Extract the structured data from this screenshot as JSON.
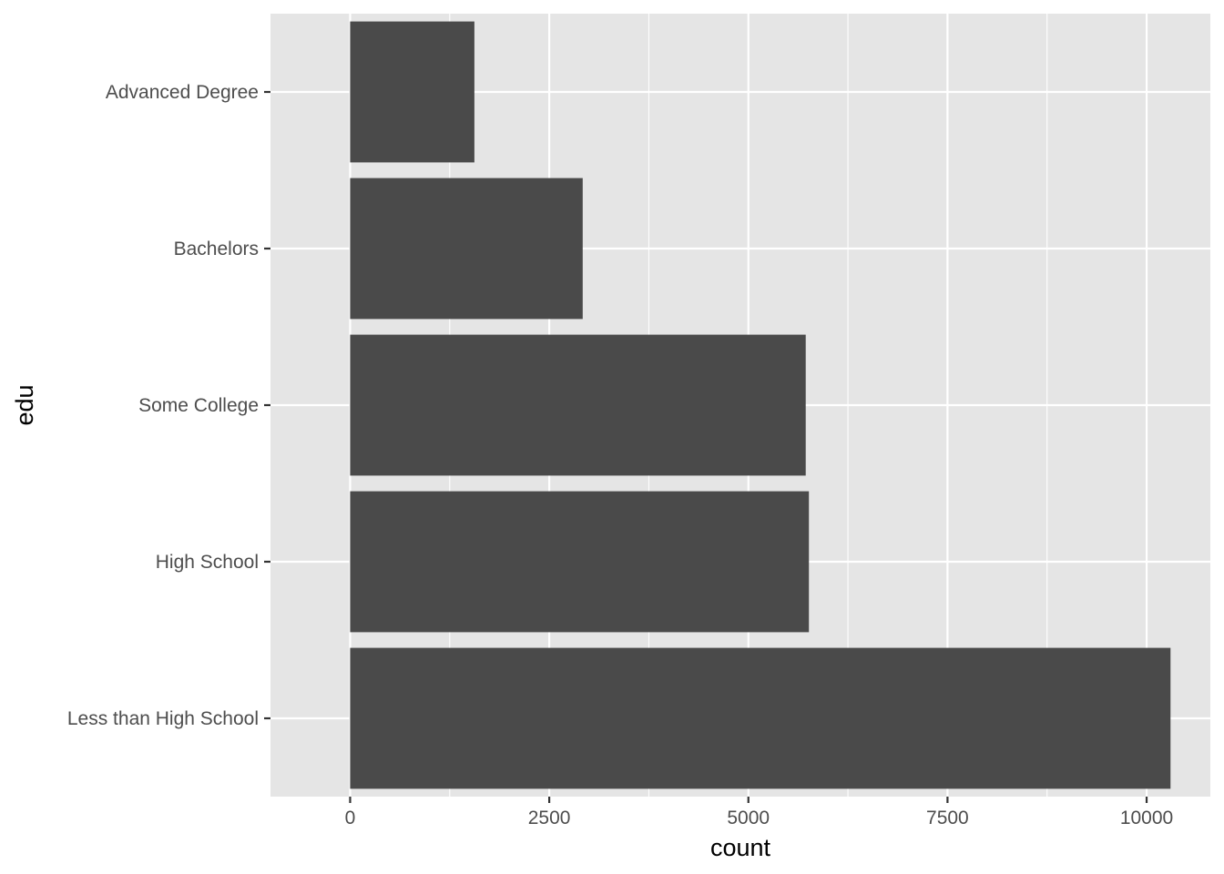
{
  "chart_data": {
    "type": "bar",
    "orientation": "horizontal",
    "categories": [
      "Advanced Degree",
      "Bachelors",
      "Some College",
      "High School",
      "Less than High School"
    ],
    "values": [
      1560,
      2920,
      5720,
      5760,
      10300
    ],
    "xlabel": "count",
    "ylabel": "edu",
    "xlim": [
      -1000,
      10800
    ],
    "xticks": [
      0,
      2500,
      5000,
      7500,
      10000
    ],
    "xtick_labels": [
      "0",
      "2500",
      "5000",
      "7500",
      "10000"
    ],
    "grid": true,
    "colors": {
      "panel": "#e5e5e5",
      "grid": "#ffffff",
      "bar": "#4a4a4a",
      "tick_text": "#4d4d4d",
      "tick_mark": "#333333"
    }
  }
}
